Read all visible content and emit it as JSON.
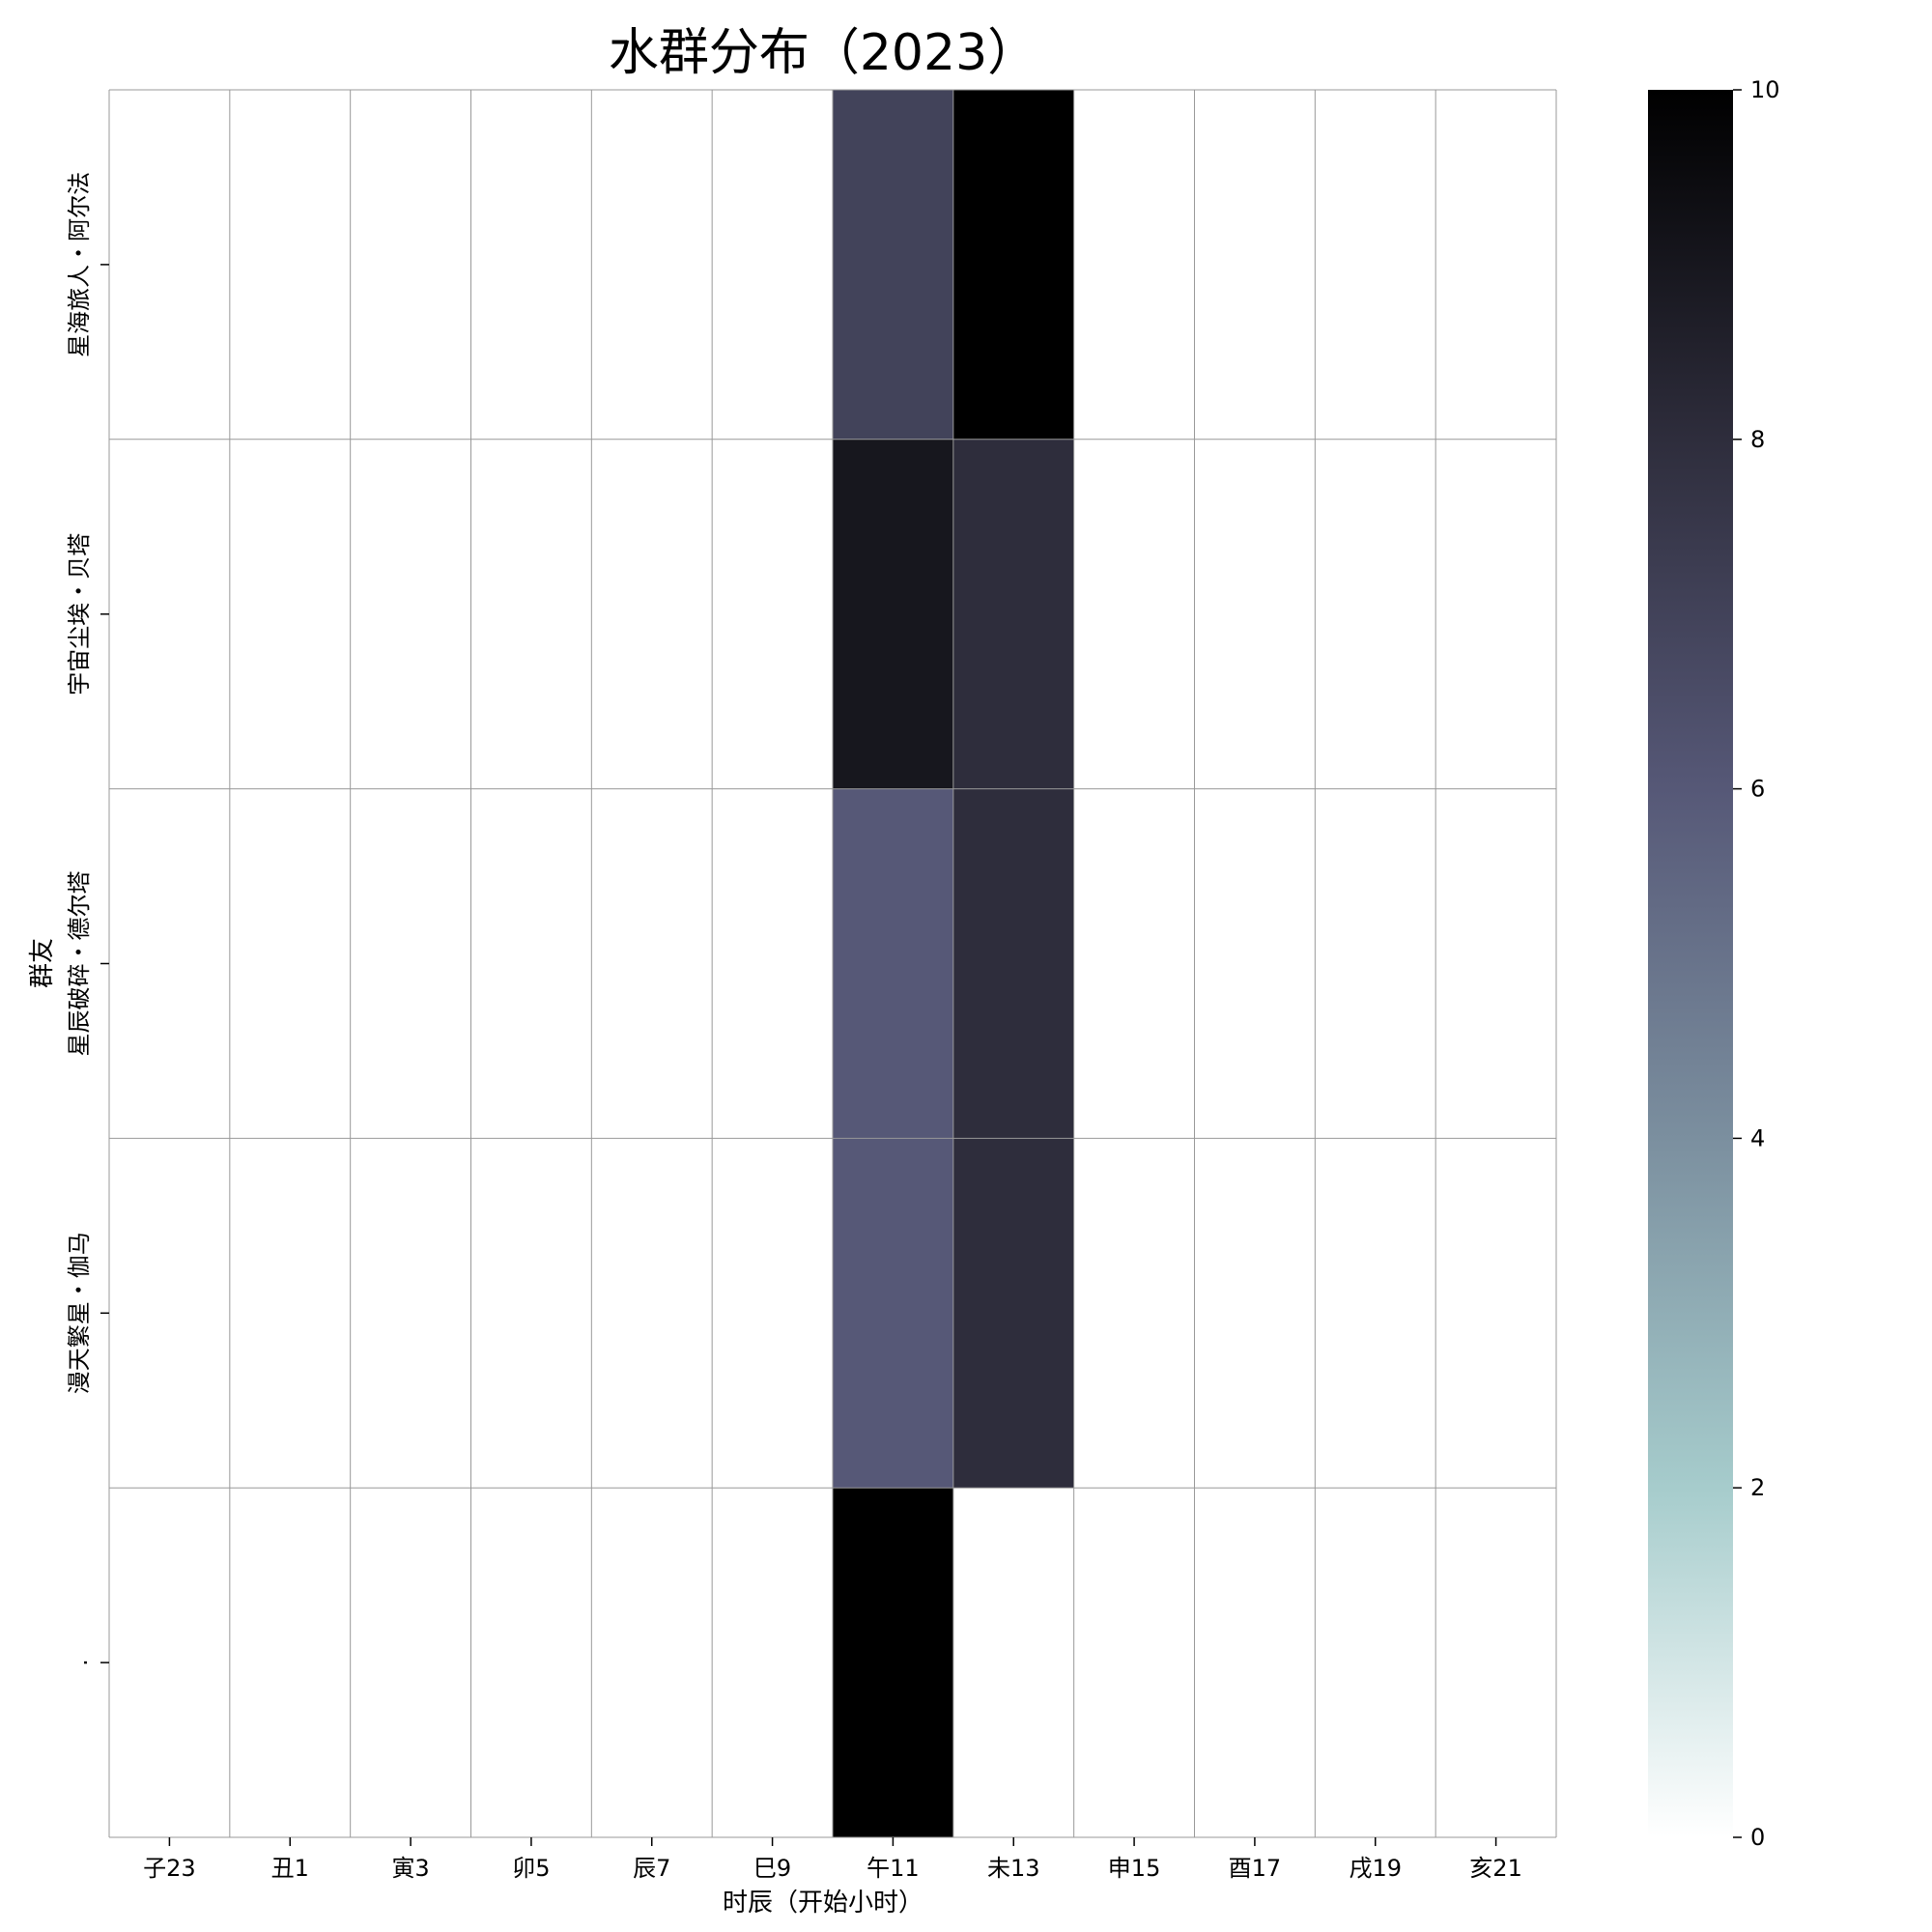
{
  "chart_data": {
    "type": "heatmap",
    "title": "水群分布（2023）",
    "xlabel": "时辰（开始小时）",
    "ylabel": "群友",
    "x_categories": [
      "子23",
      "丑1",
      "寅3",
      "卯5",
      "辰7",
      "巳9",
      "午11",
      "未13",
      "申15",
      "酉17",
      "戌19",
      "亥21"
    ],
    "y_categories": [
      "星海旅人・阿尔法",
      "宇宙尘埃・贝塔",
      "星辰破碎・德尔塔",
      "漫天繁星・伽马",
      "."
    ],
    "values": [
      [
        0,
        0,
        0,
        0,
        0,
        0,
        7,
        10,
        0,
        0,
        0,
        0
      ],
      [
        0,
        0,
        0,
        0,
        0,
        0,
        9,
        8,
        0,
        0,
        0,
        0
      ],
      [
        0,
        0,
        0,
        0,
        0,
        0,
        6,
        8,
        0,
        0,
        0,
        0
      ],
      [
        0,
        0,
        0,
        0,
        0,
        0,
        6,
        8,
        0,
        0,
        0,
        0
      ],
      [
        0,
        0,
        0,
        0,
        0,
        0,
        10,
        0,
        0,
        0,
        0,
        0
      ]
    ],
    "colorbar": {
      "min": 0,
      "max": 10,
      "ticks": [
        0,
        2,
        4,
        6,
        8,
        10
      ]
    },
    "colormap_stops": [
      "#ffffff",
      "#a6cccc",
      "#7b8f9f",
      "#565877",
      "#2e2d3c",
      "#000000"
    ],
    "grid_color": "#999999"
  }
}
